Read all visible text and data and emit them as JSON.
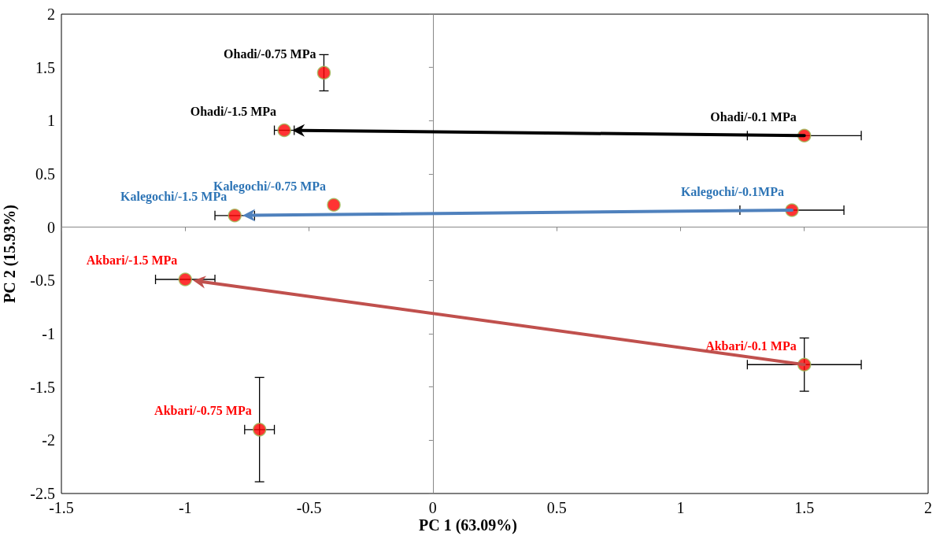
{
  "chart_data": {
    "type": "scatter",
    "xlabel": "PC 1 (63.09%)",
    "ylabel": "PC 2 (15.93%)",
    "xlim": [
      -1.5,
      2
    ],
    "xticks": [
      -1.5,
      -1,
      -0.5,
      0,
      0.5,
      1,
      1.5,
      2
    ],
    "ylim": [
      -2.5,
      2
    ],
    "yticks": [
      -2.5,
      -2,
      -1.5,
      -1,
      -0.5,
      0,
      0.5,
      1,
      1.5,
      2
    ],
    "marker": "circle",
    "series": [
      {
        "color": "#000000",
        "colors": [
          "#ff0000",
          "#ff0000",
          "#ff0000"
        ],
        "x": [
          1.5,
          -0.44,
          -0.6
        ],
        "values": [
          0.86,
          1.45,
          0.91
        ],
        "errors": [
          null,
          0.17,
          null
        ],
        "xerrors": [
          0.23,
          null,
          0.04
        ]
      },
      {
        "color": "#2e75b6",
        "colors": [
          "#ff0000",
          "#ff0000",
          "#ff0000"
        ],
        "x": [
          1.45,
          -0.4,
          -0.8
        ],
        "values": [
          0.16,
          0.21,
          0.11
        ],
        "errors": [
          null,
          null,
          null
        ],
        "xerrors": [
          0.21,
          null,
          0.08
        ]
      },
      {
        "color": "#ff0000",
        "colors": [
          "#ff0000",
          "#ff0000",
          "#ff0000"
        ],
        "x": [
          1.5,
          -0.7,
          -1.0
        ],
        "values": [
          -1.29,
          -1.9,
          -0.49
        ],
        "errors": [
          0.25,
          0.49,
          null
        ],
        "xerrors": [
          0.23,
          0.06,
          0.12
        ]
      }
    ],
    "annotations": [
      {
        "text": "Ohadi/-0.1 MPa",
        "x": 1.5,
        "y": 0.86
      },
      {
        "text": "Ohadi/-0.75 MPa",
        "x": -0.44,
        "y": 1.45
      },
      {
        "text": "Ohadi/-1.5 MPa",
        "x": -0.6,
        "y": 0.91
      },
      {
        "text": "Kalegochi/-0.1MPa",
        "x": 1.45,
        "y": 0.16
      },
      {
        "text": "Kalegochi/-0.75 MPa",
        "x": -0.4,
        "y": 0.21
      },
      {
        "text": "Kalegochi/-1.5 MPa",
        "x": -0.8,
        "y": 0.11
      },
      {
        "text": "Akbari/-0.1 MPa",
        "x": 1.5,
        "y": -1.29
      },
      {
        "text": "Akbari/-0.75 MPa",
        "x": -0.7,
        "y": -1.9
      },
      {
        "text": "Akbari/-1.5 MPa",
        "x": -1.0,
        "y": -0.49
      }
    ]
  }
}
